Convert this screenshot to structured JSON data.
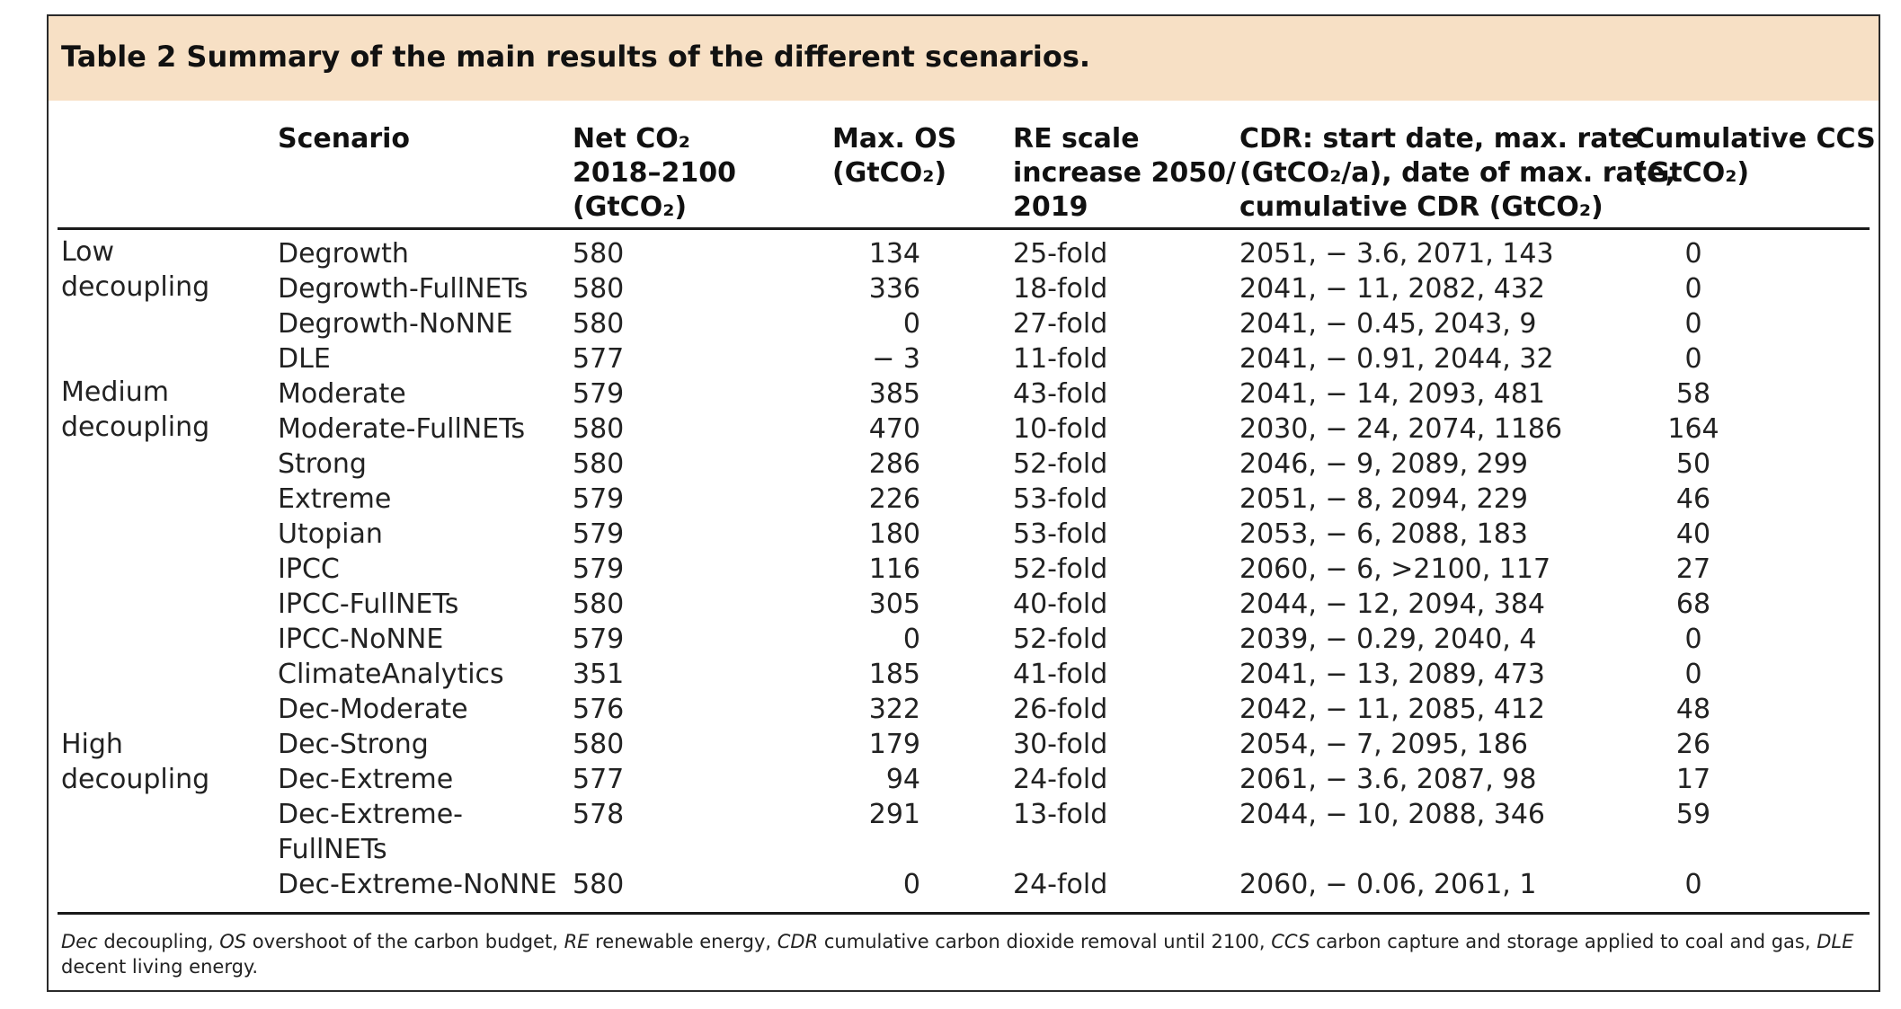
{
  "table": {
    "title": "Table 2 Summary of the main results of the different scenarios.",
    "headers": {
      "scenario": "Scenario",
      "net_co2": [
        "Net CO₂",
        "2018–2100",
        "(GtCO₂)"
      ],
      "max_os": [
        "Max. OS",
        "(GtCO₂)"
      ],
      "re_scale": [
        "RE scale",
        "increase 2050/",
        "2019"
      ],
      "cdr": [
        "CDR: start date, max. rate",
        "(GtCO₂/a), date of max. rate,",
        "cumulative CDR (GtCO₂)"
      ],
      "ccs": [
        "Cumulative CCS",
        "(GtCO₂)"
      ]
    },
    "groups": [
      {
        "label": [
          "Low",
          "decoupling"
        ]
      },
      {
        "label": [
          "Medium",
          "decoupling"
        ]
      },
      {
        "label": [
          "High",
          "decoupling"
        ]
      }
    ],
    "rows": [
      {
        "scenario": "Degrowth",
        "net": "580",
        "os": "134",
        "re": "25-fold",
        "cdr": "2051, − 3.6, 2071, 143",
        "ccs": "0"
      },
      {
        "scenario": "Degrowth-FullNETs",
        "net": "580",
        "os": "336",
        "re": "18-fold",
        "cdr": "2041, − 11, 2082, 432",
        "ccs": "0"
      },
      {
        "scenario": "Degrowth-NoNNE",
        "net": "580",
        "os": "0",
        "re": "27-fold",
        "cdr": "2041, − 0.45, 2043, 9",
        "ccs": "0"
      },
      {
        "scenario": "DLE",
        "net": "577",
        "os": "− 3",
        "re": "11-fold",
        "cdr": "2041, − 0.91, 2044, 32",
        "ccs": "0"
      },
      {
        "scenario": "Moderate",
        "net": "579",
        "os": "385",
        "re": "43-fold",
        "cdr": "2041, − 14, 2093, 481",
        "ccs": "58"
      },
      {
        "scenario": "Moderate-FullNETs",
        "net": "580",
        "os": "470",
        "re": "10-fold",
        "cdr": "2030, − 24, 2074, 1186",
        "ccs": "164"
      },
      {
        "scenario": "Strong",
        "net": "580",
        "os": "286",
        "re": "52-fold",
        "cdr": "2046, − 9, 2089, 299",
        "ccs": "50"
      },
      {
        "scenario": "Extreme",
        "net": "579",
        "os": "226",
        "re": "53-fold",
        "cdr": "2051, − 8, 2094, 229",
        "ccs": "46"
      },
      {
        "scenario": "Utopian",
        "net": "579",
        "os": "180",
        "re": "53-fold",
        "cdr": "2053, − 6, 2088, 183",
        "ccs": "40"
      },
      {
        "scenario": "IPCC",
        "net": "579",
        "os": "116",
        "re": "52-fold",
        "cdr": "2060, − 6, >2100, 117",
        "ccs": "27"
      },
      {
        "scenario": "IPCC-FullNETs",
        "net": "580",
        "os": "305",
        "re": "40-fold",
        "cdr": "2044, − 12, 2094, 384",
        "ccs": "68"
      },
      {
        "scenario": "IPCC-NoNNE",
        "net": "579",
        "os": "0",
        "re": "52-fold",
        "cdr": "2039, − 0.29, 2040, 4",
        "ccs": "0"
      },
      {
        "scenario": "ClimateAnalytics",
        "net": "351",
        "os": "185",
        "re": "41-fold",
        "cdr": "2041, − 13, 2089, 473",
        "ccs": "0"
      },
      {
        "scenario": "Dec-Moderate",
        "net": "576",
        "os": "322",
        "re": "26-fold",
        "cdr": "2042, − 11, 2085, 412",
        "ccs": "48"
      },
      {
        "scenario": "Dec-Strong",
        "net": "580",
        "os": "179",
        "re": "30-fold",
        "cdr": "2054, − 7, 2095, 186",
        "ccs": "26"
      },
      {
        "scenario": "Dec-Extreme",
        "net": "577",
        "os": "94",
        "re": "24-fold",
        "cdr": "2061, − 3.6, 2087, 98",
        "ccs": "17"
      },
      {
        "scenario": "Dec-Extreme-",
        "scenario2": "FullNETs",
        "net": "578",
        "os": "291",
        "re": "13-fold",
        "cdr": "2044, − 10, 2088, 346",
        "ccs": "59"
      },
      {
        "scenario": "Dec-Extreme-NoNNE",
        "net": "580",
        "os": "0",
        "re": "24-fold",
        "cdr": "2060, − 0.06, 2061, 1",
        "ccs": "0"
      }
    ],
    "footnote": [
      {
        "abbr": "Dec",
        "text": " decoupling, "
      },
      {
        "abbr": "OS",
        "text": " overshoot of the carbon budget, "
      },
      {
        "abbr": "RE",
        "text": " renewable energy, "
      },
      {
        "abbr": "CDR",
        "text": " cumulative carbon dioxide removal until 2100, "
      },
      {
        "abbr": "CCS",
        "text": " carbon capture and storage applied to coal and gas, "
      },
      {
        "abbr": "DLE",
        "text": " decent living energy."
      }
    ],
    "colors": {
      "title_band": "#f7e0c5",
      "rule": "#1a1a1a"
    }
  }
}
